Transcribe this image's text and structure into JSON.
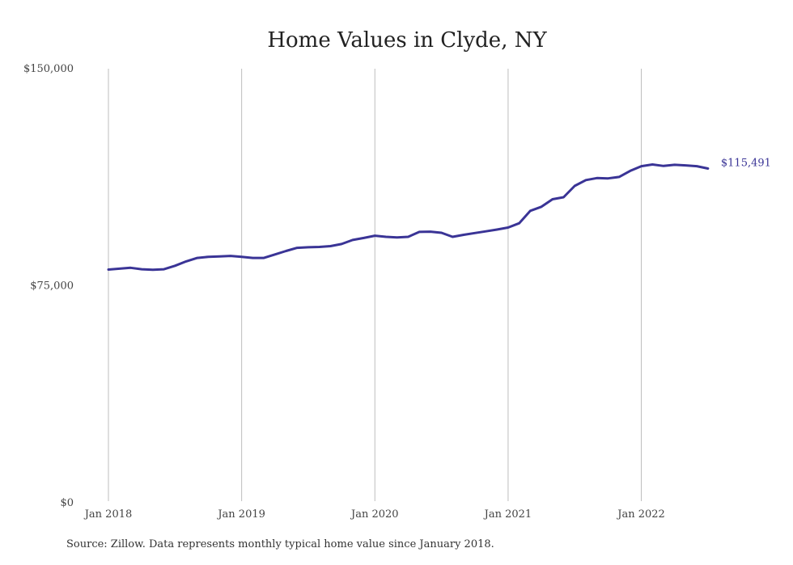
{
  "chart_data": {
    "type": "line",
    "title": "Home Values in Clyde, NY",
    "y_ticks": [
      "$150,000",
      "$75,000",
      "$0"
    ],
    "y_tick_values": [
      150000,
      75000,
      0
    ],
    "ylim": [
      0,
      150000
    ],
    "x_ticks": [
      "Jan 2018",
      "Jan 2019",
      "Jan 2020",
      "Jan 2021",
      "Jan 2022"
    ],
    "x_tick_indices": [
      0,
      12,
      24,
      36,
      48
    ],
    "grid": "vertical",
    "color": "#3a3496",
    "series": [
      {
        "values": [
          80600,
          80900,
          81200,
          80700,
          80500,
          80700,
          81900,
          83400,
          84600,
          85000,
          85100,
          85300,
          85000,
          84600,
          84600,
          85800,
          87000,
          88100,
          88300,
          88400,
          88700,
          89400,
          90800,
          91500,
          92300,
          91900,
          91700,
          91900,
          93600,
          93700,
          93300,
          91900,
          92600,
          93200,
          93800,
          94400,
          95100,
          96600,
          100900,
          102300,
          104900,
          105600,
          109500,
          111500,
          112200,
          112100,
          112600,
          114700,
          116300,
          116900,
          116400,
          116800,
          116600,
          116300,
          115491
        ],
        "end_label": "$115,491"
      }
    ],
    "source": "Source: Zillow. Data represents monthly typical home value since January 2018."
  }
}
